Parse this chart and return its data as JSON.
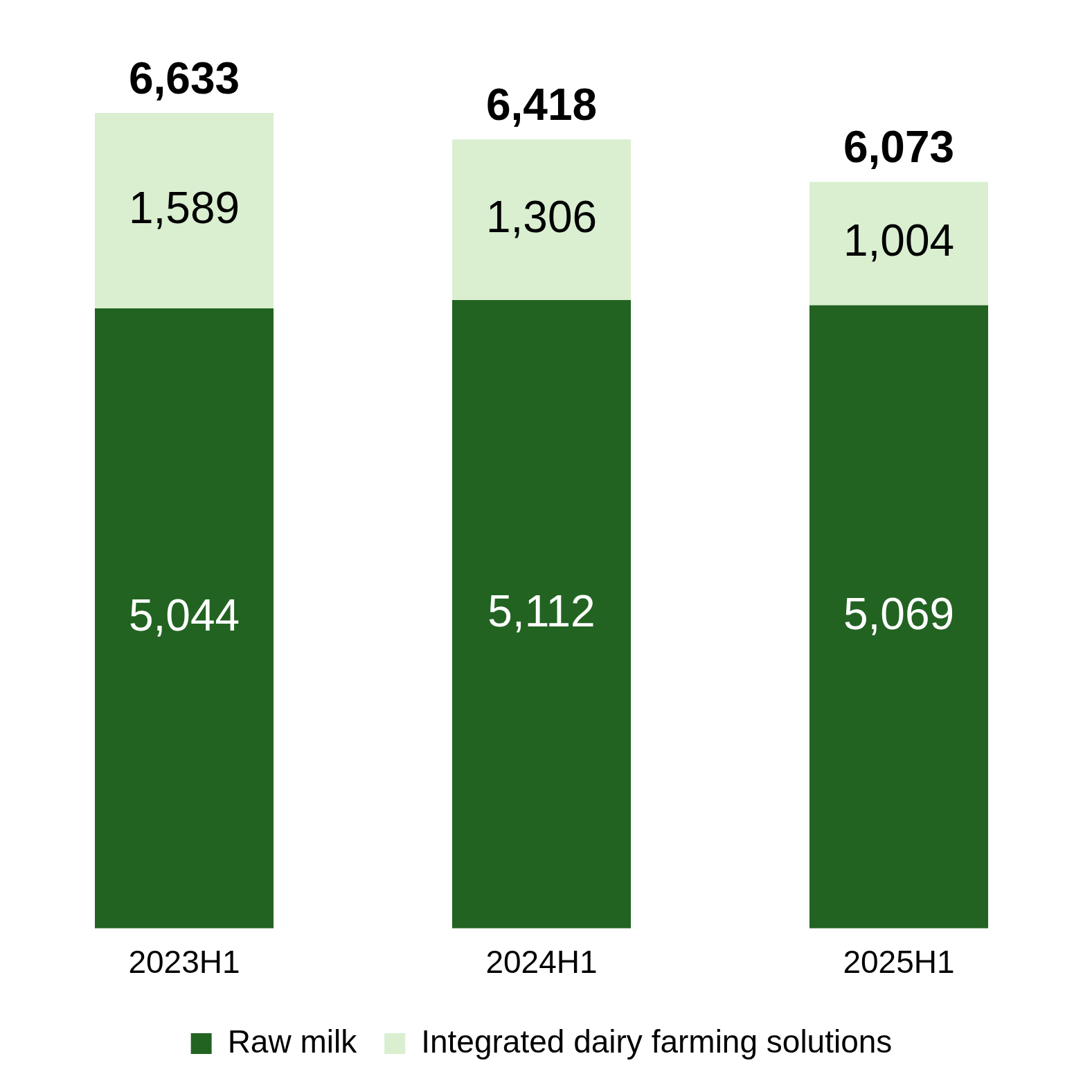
{
  "chart_data": {
    "type": "bar",
    "stacked": true,
    "categories": [
      "2023H1",
      "2024H1",
      "2025H1"
    ],
    "series": [
      {
        "name": "Raw milk",
        "color": "#226322",
        "values": [
          5044,
          5112,
          5069
        ],
        "value_labels": [
          "5,044",
          "5,112",
          "5,069"
        ]
      },
      {
        "name": "Integrated dairy farming solutions",
        "color": "#d9efd0",
        "values": [
          1589,
          1306,
          1004
        ],
        "value_labels": [
          "1,589",
          "1,306",
          "1,004"
        ]
      }
    ],
    "totals": [
      "6,633",
      "6,418",
      "6,073"
    ],
    "legend": "bottom",
    "grid": false,
    "tick_labels": "x"
  }
}
